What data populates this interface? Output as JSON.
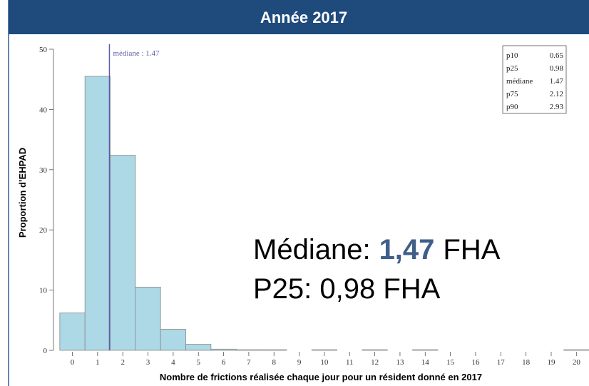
{
  "chart_data": {
    "type": "histogram",
    "title": "Année 2017",
    "xlabel": "Nombre de frictions réalisée chaque jour pour un résident donné en 2017",
    "ylabel": "Proportion d’EHPAD",
    "bins": [
      -0.5,
      0.5,
      1.5,
      2.5,
      3.5,
      4.5,
      5.5,
      6.5,
      7.5,
      8.5,
      9.5,
      10.5,
      11.5,
      12.5,
      13.5,
      14.5,
      15.5,
      16.5,
      17.5,
      18.5,
      19.5,
      20.5
    ],
    "counts": [
      6.2,
      45.5,
      32.4,
      10.5,
      3.5,
      1.0,
      0.2,
      0.1,
      0.1,
      0,
      0.1,
      0,
      0.1,
      0,
      0.1,
      0,
      0,
      0,
      0,
      0,
      0.1
    ],
    "color": "#add8e6",
    "xlim": [
      -0.75,
      20.5
    ],
    "xticks": [
      0,
      1,
      2,
      3,
      4,
      5,
      6,
      7,
      8,
      9,
      10,
      11,
      12,
      13,
      14,
      15,
      16,
      17,
      18,
      19,
      20
    ],
    "ylim": [
      0,
      50
    ],
    "yticks": [
      0,
      10,
      20,
      30,
      40,
      50
    ],
    "median_line": {
      "value": 1.47,
      "label": "médiane : 1.47",
      "color": "#5b5ea6"
    },
    "stats": [
      {
        "name": "p10",
        "value": 0.65
      },
      {
        "name": "p25",
        "value": 0.98
      },
      {
        "name": "médiane",
        "value": 1.47
      },
      {
        "name": "p75",
        "value": 2.12
      },
      {
        "name": "p90",
        "value": 2.93
      }
    ],
    "callout": {
      "line1_prefix": "Médiane:",
      "line1_value": "1,47",
      "line1_unit": "FHA",
      "line2": "P25: 0,98 FHA"
    }
  }
}
